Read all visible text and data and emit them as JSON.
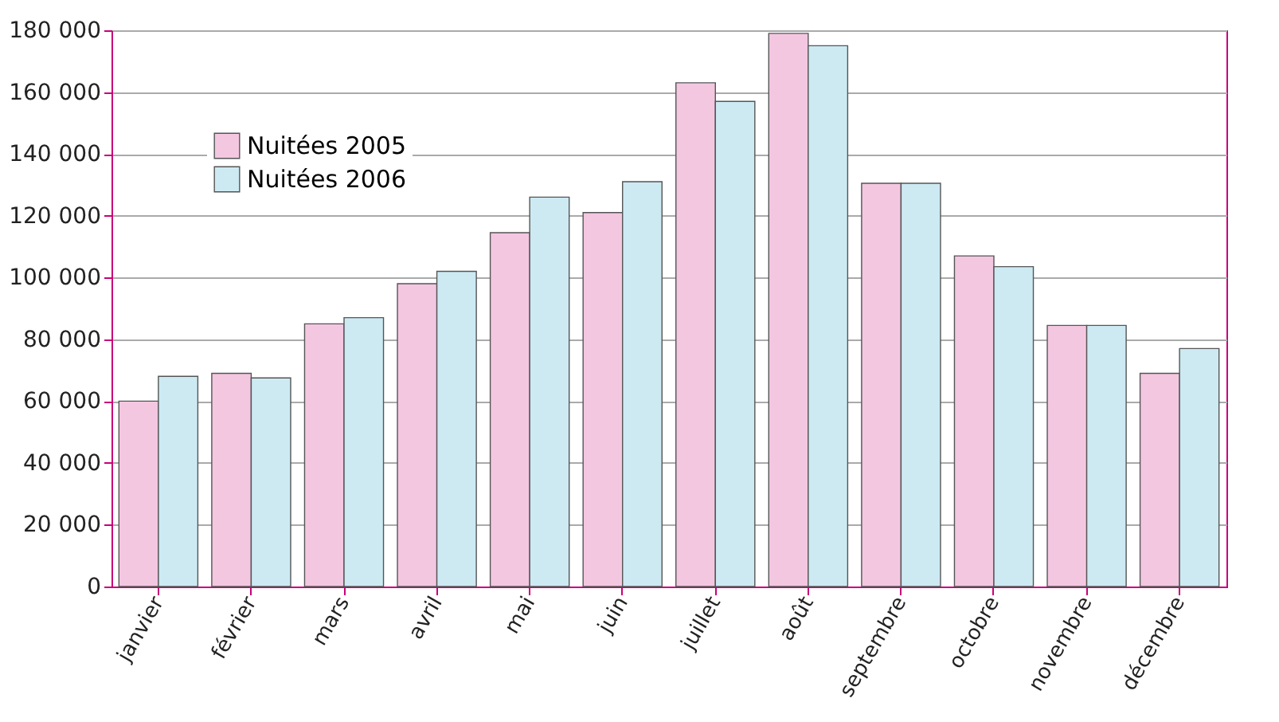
{
  "chart_data": {
    "type": "bar",
    "categories": [
      "janvier",
      "février",
      "mars",
      "avril",
      "mai",
      "juin",
      "juillet",
      "août",
      "septembre",
      "octobre",
      "novembre",
      "décembre"
    ],
    "series": [
      {
        "name": "Nuitées 2005",
        "color": "#f4c7e1",
        "values": [
          60000,
          69000,
          85000,
          98000,
          114500,
          121000,
          163000,
          179000,
          130500,
          107000,
          84500,
          69000
        ]
      },
      {
        "name": "Nuitées 2006",
        "color": "#cdeaf3",
        "values": [
          68000,
          67500,
          87000,
          102000,
          126000,
          131000,
          157000,
          175000,
          130500,
          103500,
          84500,
          77000
        ]
      }
    ],
    "ylim": [
      0,
      180000
    ],
    "yticks": [
      {
        "value": 0,
        "label": "0"
      },
      {
        "value": 20000,
        "label": "20 000"
      },
      {
        "value": 40000,
        "label": "40 000"
      },
      {
        "value": 60000,
        "label": "60 000"
      },
      {
        "value": 80000,
        "label": "80 000"
      },
      {
        "value": 100000,
        "label": "100 000"
      },
      {
        "value": 120000,
        "label": "120 000"
      },
      {
        "value": 140000,
        "label": "140 000"
      },
      {
        "value": 160000,
        "label": "160 000"
      },
      {
        "value": 180000,
        "label": "180 000"
      }
    ],
    "grid": "y",
    "legend": "top left"
  }
}
